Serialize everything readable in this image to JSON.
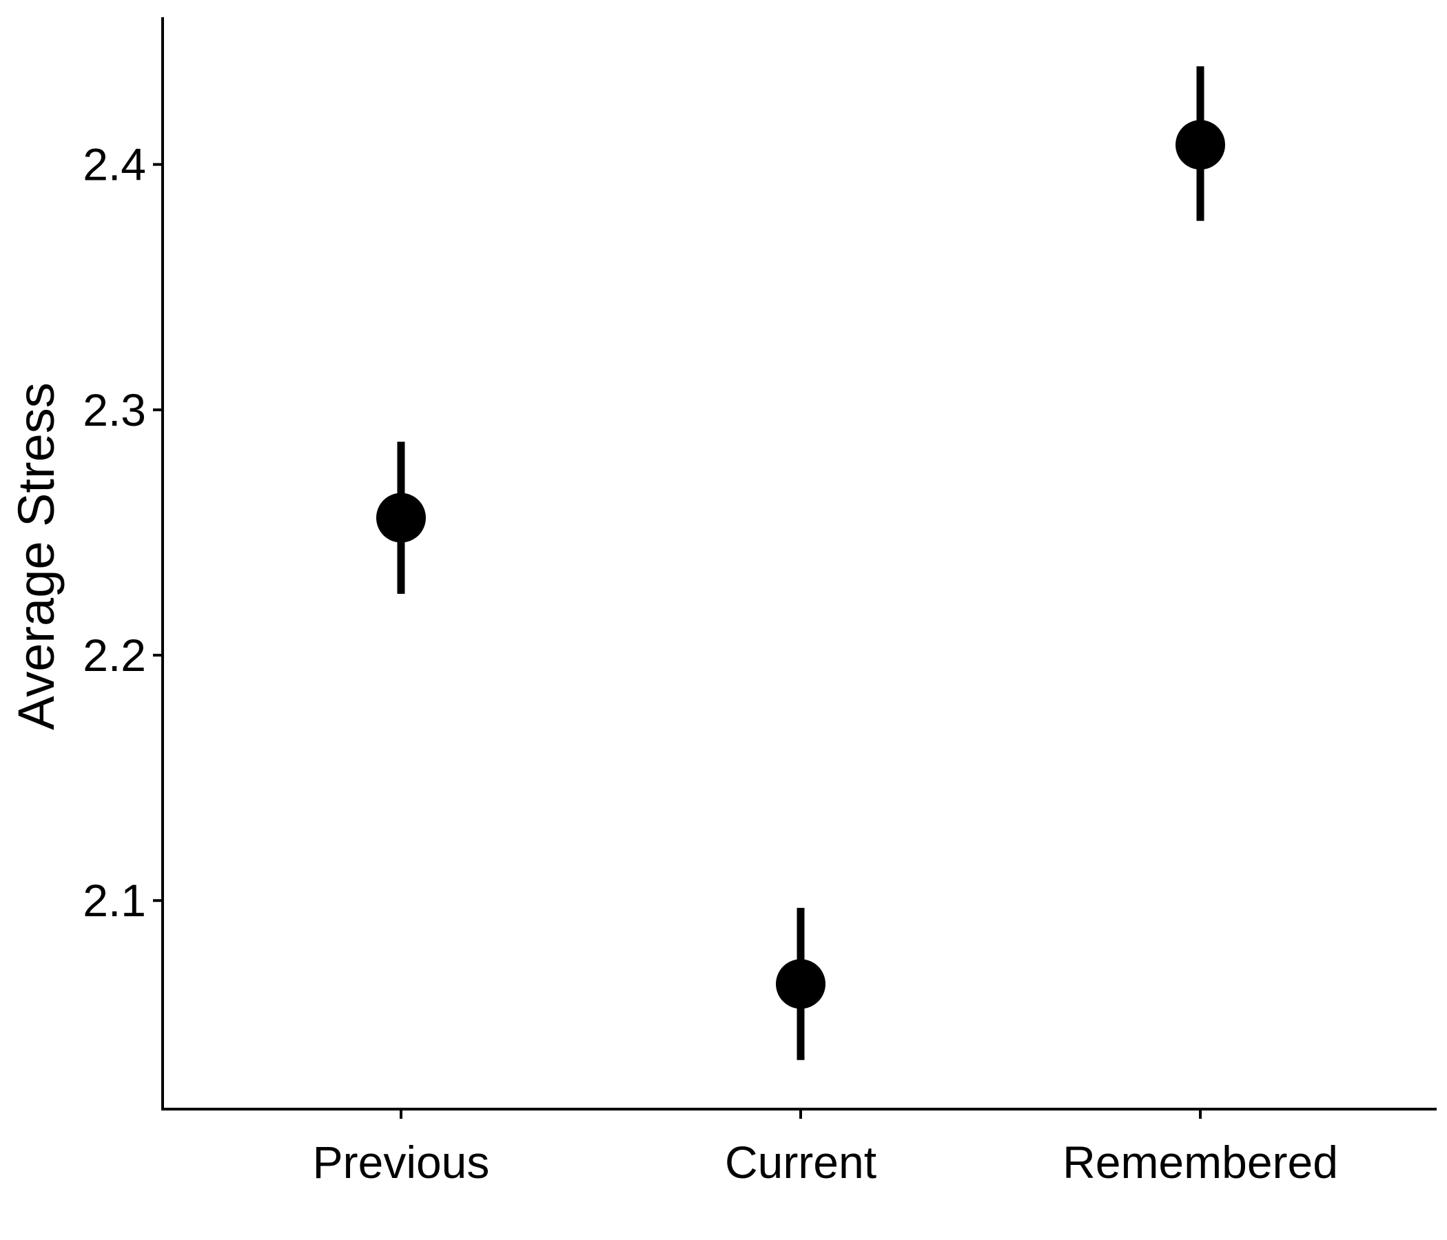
{
  "chart_data": {
    "type": "scatter",
    "title": "",
    "xlabel": "",
    "ylabel": "Average Stress",
    "categories": [
      "Previous",
      "Current",
      "Remembered"
    ],
    "values": [
      2.256,
      2.066,
      2.408
    ],
    "error_low": [
      2.225,
      2.035,
      2.377
    ],
    "error_high": [
      2.287,
      2.097,
      2.44
    ],
    "ylim": [
      2.015,
      2.46
    ],
    "yticks": [
      2.1,
      2.2,
      2.3,
      2.4
    ],
    "ytick_labels": [
      "2.1",
      "2.2",
      "2.3",
      "2.4"
    ],
    "grid": false,
    "legend": "none",
    "color": "#000000"
  }
}
